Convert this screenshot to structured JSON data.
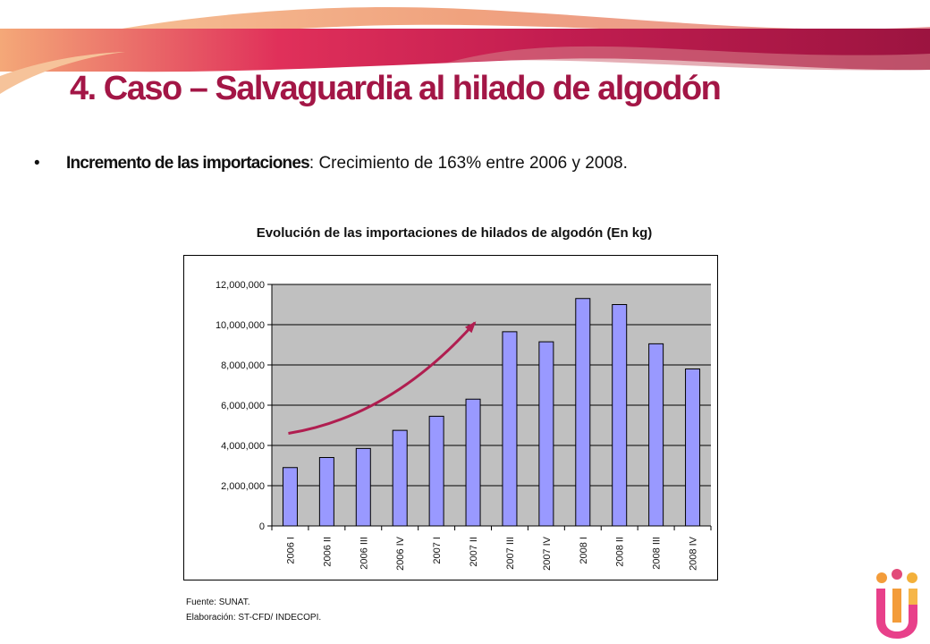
{
  "header": {
    "title": "4. Caso – Salvaguardia al hilado de algodón",
    "colors": {
      "title": "#a31646",
      "banner_dark": "#b3184c",
      "banner_light": "#f2a07a"
    }
  },
  "bullet": {
    "bold": "Incremento de las importaciones",
    "rest": ": Crecimiento de 163% entre 2006 y 2008."
  },
  "chart_data": {
    "type": "bar",
    "title": "Evolución de las importaciones de hilados de algodón (En kg)",
    "xlabel": "",
    "ylabel": "",
    "categories": [
      "2006 I",
      "2006 II",
      "2006 III",
      "2006 IV",
      "2007 I",
      "2007 II",
      "2007 III",
      "2007 IV",
      "2008 I",
      "2008 II",
      "2008 III",
      "2008 IV"
    ],
    "values": [
      2900000,
      3400000,
      3850000,
      4750000,
      5450000,
      6300000,
      9650000,
      9150000,
      11300000,
      11000000,
      9050000,
      7800000
    ],
    "ylim": [
      0,
      12000000
    ],
    "yticks": [
      0,
      2000000,
      4000000,
      6000000,
      8000000,
      10000000,
      12000000
    ],
    "ytick_labels": [
      "0",
      "2,000,000",
      "4,000,000",
      "6,000,000",
      "8,000,000",
      "10,000,000",
      "12,000,000"
    ],
    "grid": true,
    "legend": "none",
    "colors": {
      "bar": "#9999ff",
      "plot_bg": "#c0c0c0",
      "arrow": "#b01e50"
    },
    "trend_arrow": {
      "from_category": 0,
      "from_value": 4600000,
      "to_category": 5,
      "to_value": 10100000
    }
  },
  "notes": {
    "source": "Fuente: SUNAT.",
    "elaboration": "Elaboración: ST-CFD/ INDECOPI."
  }
}
